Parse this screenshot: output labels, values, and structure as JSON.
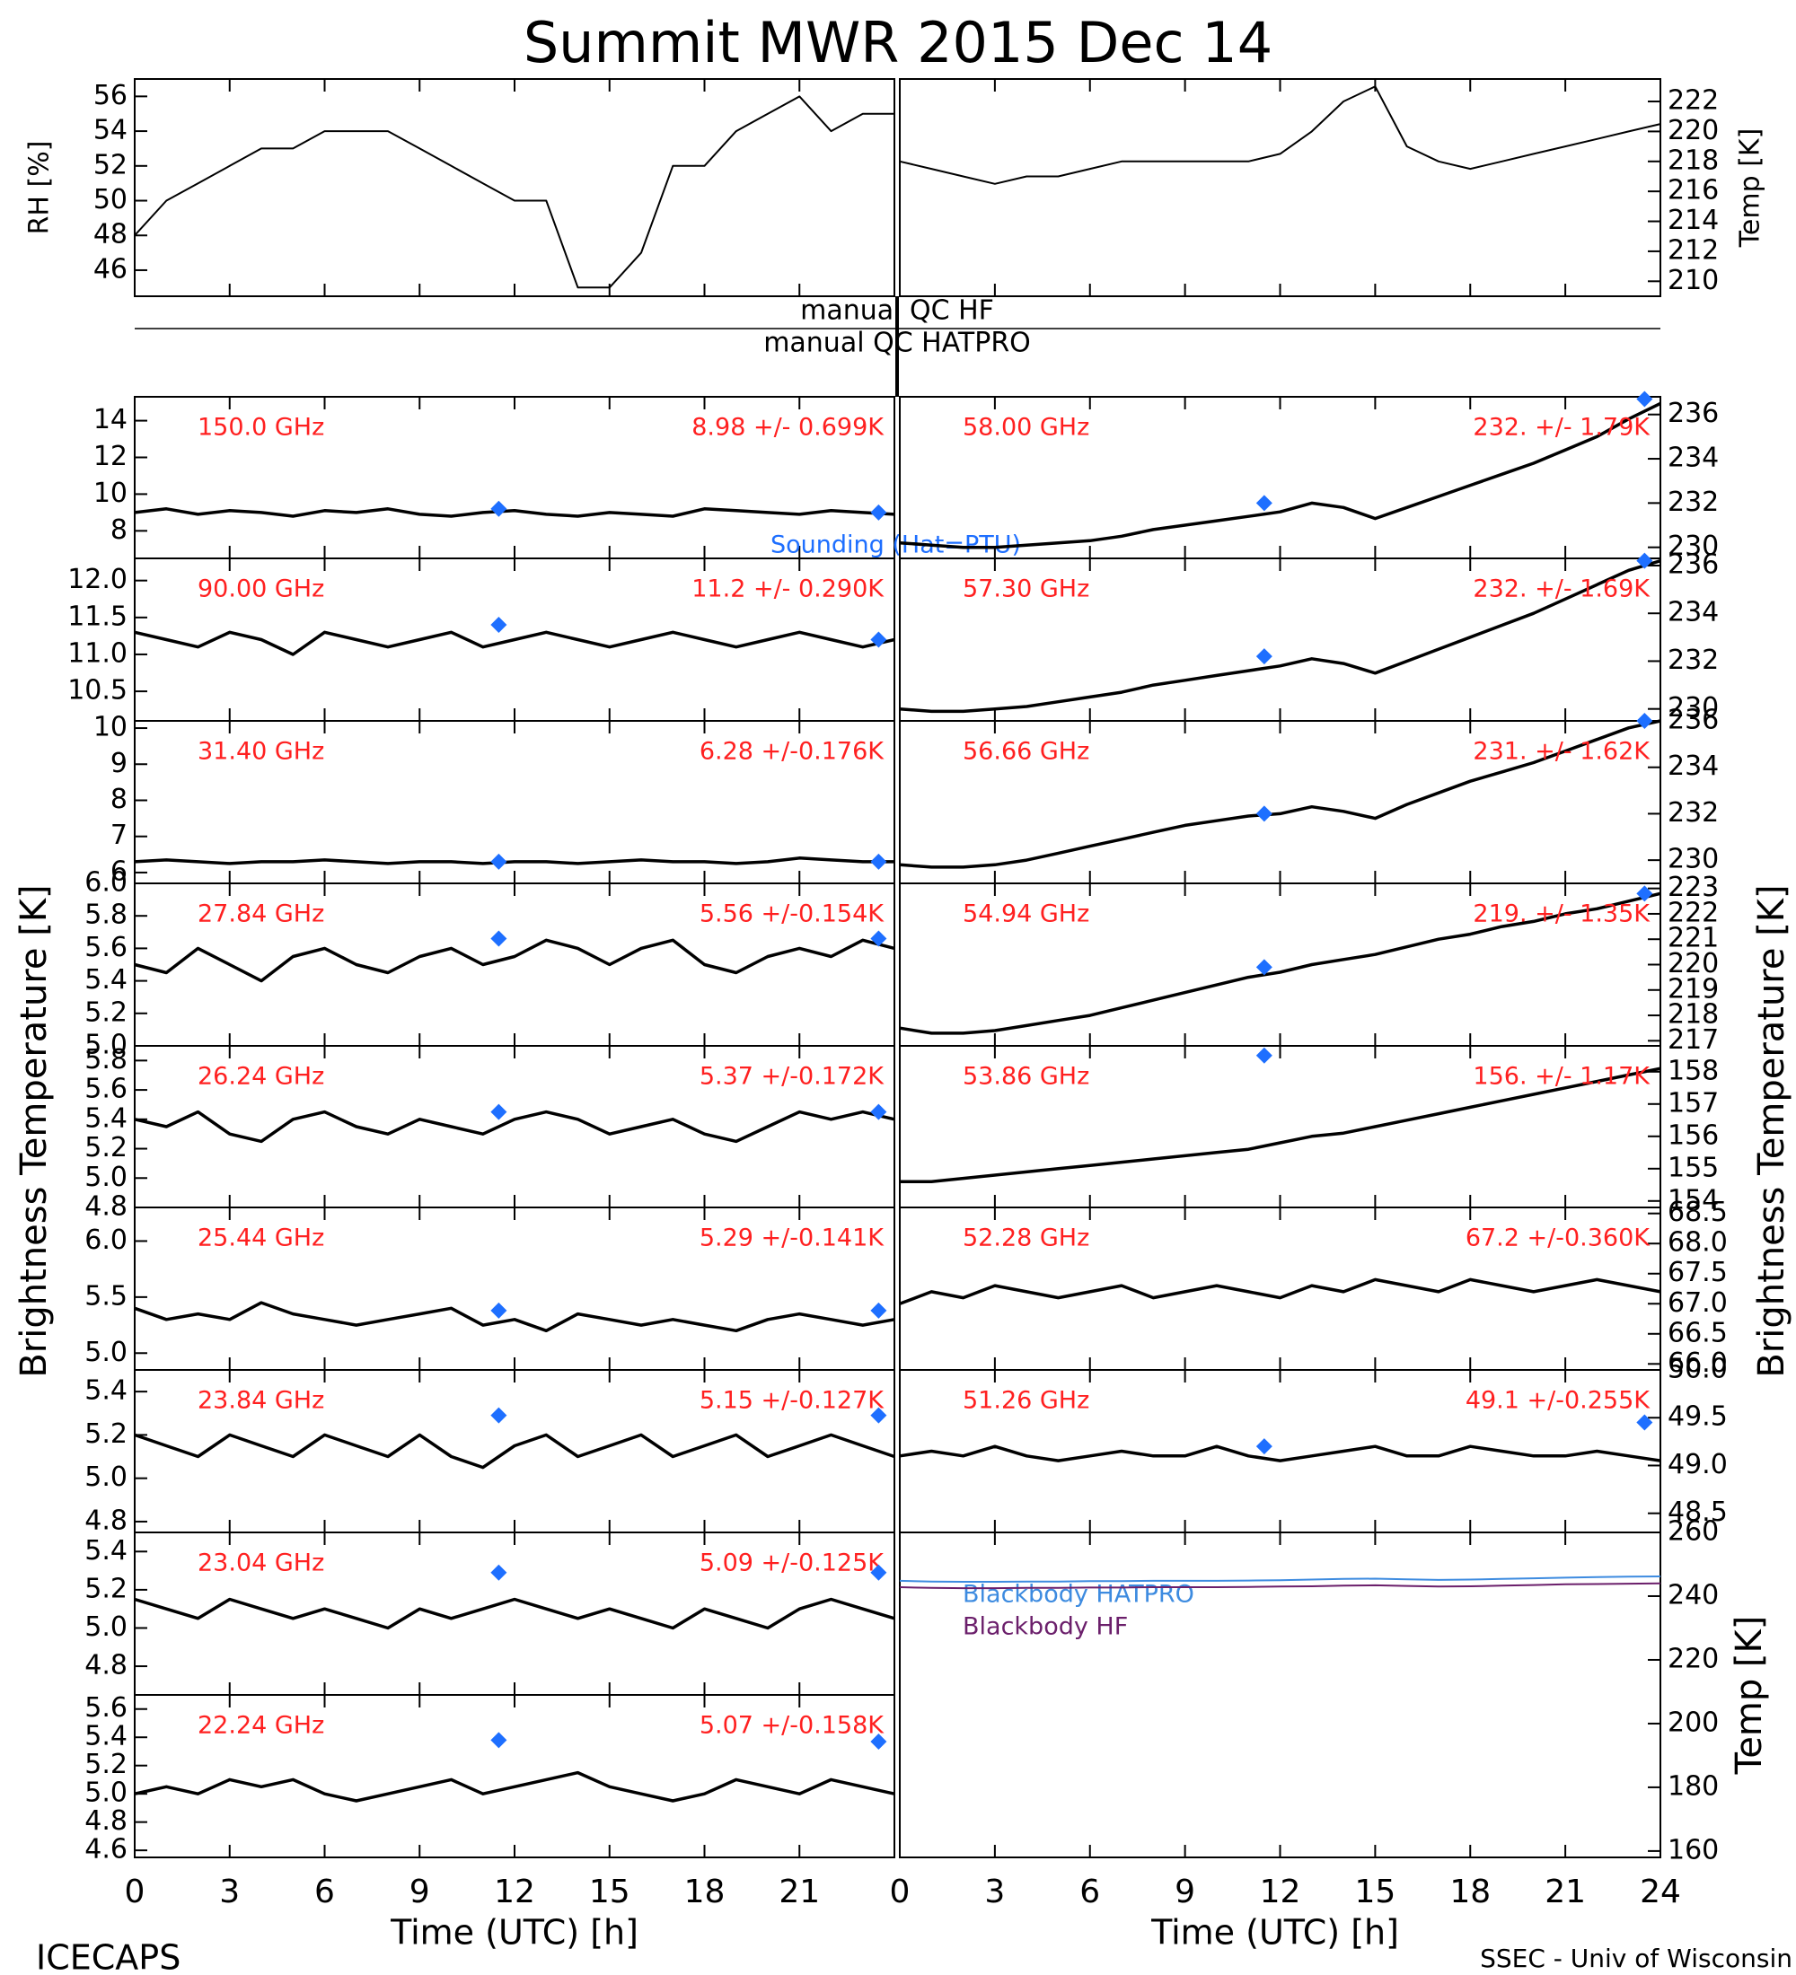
{
  "title": "Summit MWR 2015 Dec 14",
  "footer_left": "ICECAPS",
  "footer_right": "SSEC - Univ of Wisconsin",
  "y_label_left": "Brightness Temperature [K]",
  "y_label_right": "Brightness Temperature [K]",
  "qc_hf": "manual QC HF",
  "qc_hatpro": "manual QC HATPRO",
  "sounding_label": "Sounding (Hat=PTU)",
  "sonde_color": "#1e6fff",
  "x": [
    0,
    1,
    2,
    3,
    4,
    5,
    6,
    7,
    8,
    9,
    10,
    11,
    12,
    13,
    14,
    15,
    16,
    17,
    18,
    19,
    20,
    21,
    22,
    23,
    24
  ],
  "time_axis": {
    "xlim": [
      0,
      24
    ],
    "xlabel": "Time (UTC) [h]",
    "xticks_left": [
      0,
      3,
      6,
      9,
      12,
      15,
      18,
      21
    ],
    "xticks_right": [
      0,
      3,
      6,
      9,
      12,
      15,
      18,
      21,
      24
    ]
  },
  "chart_data": [
    {
      "type": "line",
      "ylabel": "RH [%]",
      "ylim": [
        44.5,
        57
      ],
      "yticks": [
        46,
        48,
        50,
        52,
        54,
        56
      ],
      "color": "#000000",
      "values": [
        48,
        50,
        51,
        52,
        53,
        53,
        54,
        54,
        54,
        53,
        52,
        51,
        50,
        50,
        45,
        45,
        47,
        52,
        52,
        54,
        55,
        56,
        54,
        55,
        55
      ]
    },
    {
      "type": "line",
      "ylabel": "Temp [K]",
      "ylim": [
        209,
        223.5
      ],
      "yticks": [
        210,
        212,
        214,
        216,
        218,
        220,
        222
      ],
      "color": "#000000",
      "values": [
        218,
        217.5,
        217,
        216.5,
        217,
        217,
        217.5,
        218,
        218,
        218,
        218,
        218,
        218.5,
        220,
        222,
        223,
        219,
        218,
        217.5,
        218,
        218.5,
        219,
        219.5,
        220,
        220.5
      ]
    },
    {
      "type": "line",
      "label": "150.0 GHz",
      "stats": "8.98 +/- 0.699K",
      "ylim": [
        6.5,
        15.3
      ],
      "yticks": [
        8,
        10,
        12,
        14
      ],
      "color": "#000000",
      "values": [
        9.0,
        9.2,
        8.9,
        9.1,
        9.0,
        8.8,
        9.1,
        9.0,
        9.2,
        8.9,
        8.8,
        9.0,
        9.1,
        8.9,
        8.8,
        9.0,
        8.9,
        8.8,
        9.2,
        9.1,
        9.0,
        8.9,
        9.1,
        9.0,
        8.9
      ],
      "sonde": {
        "x": [
          11.5,
          23.5
        ],
        "values": [
          9.2,
          9.0
        ]
      }
    },
    {
      "type": "line",
      "label": "90.00 GHz",
      "stats": "11.2 +/- 0.290K",
      "ylim": [
        10.1,
        12.3
      ],
      "yticks": [
        10.5,
        {
          "value": 11,
          "label": "11.0"
        },
        11.5,
        {
          "value": 12,
          "label": "12.0"
        }
      ],
      "color": "#000000",
      "values": [
        11.3,
        11.2,
        11.1,
        11.3,
        11.2,
        11.0,
        11.3,
        11.2,
        11.1,
        11.2,
        11.3,
        11.1,
        11.2,
        11.3,
        11.2,
        11.1,
        11.2,
        11.3,
        11.2,
        11.1,
        11.2,
        11.3,
        11.2,
        11.1,
        11.2
      ],
      "sonde": {
        "x": [
          11.5,
          23.5
        ],
        "values": [
          11.4,
          11.2
        ]
      }
    },
    {
      "type": "line",
      "label": "31.40 GHz",
      "stats": "6.28 +/-0.176K",
      "ylim": [
        5.7,
        10.2
      ],
      "yticks": [
        6,
        7,
        8,
        9,
        10
      ],
      "color": "#000000",
      "values": [
        6.3,
        6.35,
        6.3,
        6.25,
        6.3,
        6.3,
        6.35,
        6.3,
        6.25,
        6.3,
        6.3,
        6.25,
        6.3,
        6.3,
        6.25,
        6.3,
        6.35,
        6.3,
        6.3,
        6.25,
        6.3,
        6.4,
        6.35,
        6.3,
        6.3
      ],
      "sonde": {
        "x": [
          11.5,
          23.5
        ],
        "values": [
          6.3,
          6.3
        ]
      }
    },
    {
      "type": "line",
      "label": "27.84 GHz",
      "stats": "5.56 +/-0.154K",
      "ylim": [
        5.0,
        6.0
      ],
      "yticks": [
        {
          "value": 5,
          "label": "5.0"
        },
        5.2,
        5.4,
        5.6,
        5.8,
        {
          "value": 6,
          "label": "6.0"
        }
      ],
      "color": "#000000",
      "values": [
        5.5,
        5.45,
        5.6,
        5.5,
        5.4,
        5.55,
        5.6,
        5.5,
        5.45,
        5.55,
        5.6,
        5.5,
        5.55,
        5.65,
        5.6,
        5.5,
        5.6,
        5.65,
        5.5,
        5.45,
        5.55,
        5.6,
        5.55,
        5.65,
        5.6
      ],
      "sonde": {
        "x": [
          11.5,
          23.5
        ],
        "values": [
          5.66,
          5.66
        ]
      }
    },
    {
      "type": "line",
      "label": "26.24 GHz",
      "stats": "5.37 +/-0.172K",
      "ylim": [
        4.8,
        5.9
      ],
      "yticks": [
        4.8,
        {
          "value": 5,
          "label": "5.0"
        },
        5.2,
        5.4,
        5.6,
        5.8
      ],
      "color": "#000000",
      "values": [
        5.4,
        5.35,
        5.45,
        5.3,
        5.25,
        5.4,
        5.45,
        5.35,
        5.3,
        5.4,
        5.35,
        5.3,
        5.4,
        5.45,
        5.4,
        5.3,
        5.35,
        5.4,
        5.3,
        5.25,
        5.35,
        5.45,
        5.4,
        5.45,
        5.4
      ],
      "sonde": {
        "x": [
          11.5,
          23.5
        ],
        "values": [
          5.45,
          5.45
        ]
      }
    },
    {
      "type": "line",
      "label": "25.44 GHz",
      "stats": "5.29 +/-0.141K",
      "ylim": [
        4.85,
        6.3
      ],
      "yticks": [
        {
          "value": 5,
          "label": "5.0"
        },
        5.5,
        {
          "value": 6,
          "label": "6.0"
        }
      ],
      "color": "#000000",
      "values": [
        5.4,
        5.3,
        5.35,
        5.3,
        5.45,
        5.35,
        5.3,
        5.25,
        5.3,
        5.35,
        5.4,
        5.25,
        5.3,
        5.2,
        5.35,
        5.3,
        5.25,
        5.3,
        5.25,
        5.2,
        5.3,
        5.35,
        5.3,
        5.25,
        5.3
      ],
      "sonde": {
        "x": [
          11.5,
          23.5
        ],
        "values": [
          5.38,
          5.38
        ]
      }
    },
    {
      "type": "line",
      "label": "23.84 GHz",
      "stats": "5.15 +/-0.127K",
      "ylim": [
        4.75,
        5.5
      ],
      "yticks": [
        4.8,
        {
          "value": 5,
          "label": "5.0"
        },
        5.2,
        5.4
      ],
      "color": "#000000",
      "values": [
        5.2,
        5.15,
        5.1,
        5.2,
        5.15,
        5.1,
        5.2,
        5.15,
        5.1,
        5.2,
        5.1,
        5.05,
        5.15,
        5.2,
        5.1,
        5.15,
        5.2,
        5.1,
        5.15,
        5.2,
        5.1,
        5.15,
        5.2,
        5.15,
        5.1
      ],
      "sonde": {
        "x": [
          11.5,
          23.5
        ],
        "values": [
          5.29,
          5.29
        ]
      }
    },
    {
      "type": "line",
      "label": "23.04 GHz",
      "stats": "5.09 +/-0.125K",
      "ylim": [
        4.65,
        5.5
      ],
      "yticks": [
        4.8,
        {
          "value": 5,
          "label": "5.0"
        },
        5.2,
        5.4
      ],
      "color": "#000000",
      "values": [
        5.15,
        5.1,
        5.05,
        5.15,
        5.1,
        5.05,
        5.1,
        5.05,
        5.0,
        5.1,
        5.05,
        5.1,
        5.15,
        5.1,
        5.05,
        5.1,
        5.05,
        5.0,
        5.1,
        5.05,
        5.0,
        5.1,
        5.15,
        5.1,
        5.05
      ],
      "sonde": {
        "x": [
          11.5,
          23.5
        ],
        "values": [
          5.29,
          5.29
        ]
      }
    },
    {
      "type": "line",
      "label": "22.24 GHz",
      "stats": "5.07 +/-0.158K",
      "ylim": [
        4.55,
        5.7
      ],
      "yticks": [
        4.6,
        4.8,
        {
          "value": 5,
          "label": "5.0"
        },
        5.2,
        5.4,
        5.6
      ],
      "color": "#000000",
      "values": [
        5.0,
        5.05,
        5.0,
        5.1,
        5.05,
        5.1,
        5.0,
        4.95,
        5.0,
        5.05,
        5.1,
        5.0,
        5.05,
        5.1,
        5.15,
        5.05,
        5.0,
        4.95,
        5.0,
        5.1,
        5.05,
        5.0,
        5.1,
        5.05,
        5.0
      ],
      "sonde": {
        "x": [
          11.5,
          23.5
        ],
        "values": [
          5.38,
          5.37
        ]
      }
    },
    {
      "type": "line",
      "label": "58.00 GHz",
      "stats": "232. +/- 1.79K",
      "ylim": [
        229.5,
        236.8
      ],
      "yticks": [
        230,
        232,
        234,
        236
      ],
      "color": "#000000",
      "values": [
        230.2,
        230.1,
        230.0,
        230.0,
        230.1,
        230.2,
        230.3,
        230.5,
        230.8,
        231.0,
        231.2,
        231.4,
        231.6,
        232.0,
        231.8,
        231.3,
        231.8,
        232.3,
        232.8,
        233.3,
        233.8,
        234.4,
        235.0,
        235.8,
        236.5
      ],
      "sonde": {
        "x": [
          11.5,
          23.5
        ],
        "values": [
          232.0,
          236.7
        ]
      }
    },
    {
      "type": "line",
      "label": "57.30 GHz",
      "stats": "232. +/- 1.69K",
      "ylim": [
        229.5,
        236.3
      ],
      "yticks": [
        230,
        232,
        234,
        236
      ],
      "color": "#000000",
      "values": [
        230.0,
        229.9,
        229.9,
        230.0,
        230.1,
        230.3,
        230.5,
        230.7,
        231.0,
        231.2,
        231.4,
        231.6,
        231.8,
        232.1,
        231.9,
        231.5,
        232.0,
        232.5,
        233.0,
        233.5,
        234.0,
        234.6,
        235.2,
        235.8,
        236.2
      ],
      "sonde": {
        "x": [
          11.5,
          23.5
        ],
        "values": [
          232.2,
          236.2
        ]
      }
    },
    {
      "type": "line",
      "label": "56.66 GHz",
      "stats": "231. +/- 1.62K",
      "ylim": [
        229,
        236
      ],
      "yticks": [
        230,
        232,
        234,
        236
      ],
      "color": "#000000",
      "values": [
        229.8,
        229.7,
        229.7,
        229.8,
        230.0,
        230.3,
        230.6,
        230.9,
        231.2,
        231.5,
        231.7,
        231.9,
        232.0,
        232.3,
        232.1,
        231.8,
        232.4,
        232.9,
        233.4,
        233.8,
        234.2,
        234.7,
        235.2,
        235.7,
        236.0
      ],
      "sonde": {
        "x": [
          11.5,
          23.5
        ],
        "values": [
          232.0,
          236.0
        ]
      }
    },
    {
      "type": "line",
      "label": "54.94 GHz",
      "stats": "219. +/- 1.35K",
      "ylim": [
        216.8,
        223.2
      ],
      "yticks": [
        217,
        218,
        219,
        220,
        221,
        222,
        223
      ],
      "color": "#000000",
      "values": [
        217.5,
        217.3,
        217.3,
        217.4,
        217.6,
        217.8,
        218.0,
        218.3,
        218.6,
        218.9,
        219.2,
        219.5,
        219.7,
        220.0,
        220.2,
        220.4,
        220.7,
        221.0,
        221.2,
        221.5,
        221.7,
        222.0,
        222.2,
        222.5,
        222.8
      ],
      "sonde": {
        "x": [
          11.5,
          23.5
        ],
        "values": [
          219.9,
          222.8
        ]
      }
    },
    {
      "type": "line",
      "label": "53.86 GHz",
      "stats": "156. +/- 1.17K",
      "ylim": [
        153.8,
        158.8
      ],
      "yticks": [
        154,
        155,
        156,
        157,
        158
      ],
      "color": "#000000",
      "values": [
        154.6,
        154.6,
        154.7,
        154.8,
        154.9,
        155.0,
        155.1,
        155.2,
        155.3,
        155.4,
        155.5,
        155.6,
        155.8,
        156.0,
        156.1,
        156.3,
        156.5,
        156.7,
        156.9,
        157.1,
        157.3,
        157.5,
        157.7,
        157.9,
        158.1
      ],
      "sonde": {
        "x": [
          11.5,
          23.5
        ],
        "values": [
          158.5,
          null
        ]
      }
    },
    {
      "type": "line",
      "label": "52.28 GHz",
      "stats": "67.2 +/-0.360K",
      "ylim": [
        65.9,
        68.6
      ],
      "yticks": [
        {
          "value": 66,
          "label": "66.0"
        },
        66.5,
        {
          "value": 67,
          "label": "67.0"
        },
        67.5,
        {
          "value": 68,
          "label": "68.0"
        },
        68.5
      ],
      "color": "#000000",
      "values": [
        67.0,
        67.2,
        67.1,
        67.3,
        67.2,
        67.1,
        67.2,
        67.3,
        67.1,
        67.2,
        67.3,
        67.2,
        67.1,
        67.3,
        67.2,
        67.4,
        67.3,
        67.2,
        67.4,
        67.3,
        67.2,
        67.3,
        67.4,
        67.3,
        67.2
      ]
    },
    {
      "type": "line",
      "label": "51.26 GHz",
      "stats": "49.1 +/-0.255K",
      "ylim": [
        48.3,
        50.0
      ],
      "yticks": [
        48.5,
        {
          "value": 49,
          "label": "49.0"
        },
        49.5,
        {
          "value": 50,
          "label": "50.0"
        }
      ],
      "color": "#000000",
      "values": [
        49.1,
        49.15,
        49.1,
        49.2,
        49.1,
        49.05,
        49.1,
        49.15,
        49.1,
        49.1,
        49.2,
        49.1,
        49.05,
        49.1,
        49.15,
        49.2,
        49.1,
        49.1,
        49.2,
        49.15,
        49.1,
        49.1,
        49.15,
        49.1,
        49.05
      ],
      "sonde": {
        "x": [
          11.5,
          23.5
        ],
        "values": [
          49.2,
          49.45
        ]
      }
    },
    {
      "type": "line",
      "ylabel": "Temp [K]",
      "ylim": [
        158,
        260
      ],
      "yticks": [
        160,
        180,
        200,
        220,
        240,
        260
      ],
      "series": [
        {
          "name": "Blackbody HATPRO",
          "color": "#3d8be0",
          "values": [
            244.8,
            244.6,
            244.5,
            244.5,
            244.6,
            244.6,
            244.7,
            244.7,
            244.8,
            244.8,
            244.8,
            244.9,
            245.0,
            245.2,
            245.4,
            245.5,
            245.3,
            245.1,
            245.2,
            245.4,
            245.6,
            245.8,
            246.0,
            246.1,
            246.2
          ]
        },
        {
          "name": "Blackbody HF",
          "color": "#6b1f6b",
          "values": [
            242.8,
            242.6,
            242.5,
            242.5,
            242.6,
            242.6,
            242.7,
            242.7,
            242.8,
            242.8,
            242.8,
            242.9,
            243.0,
            243.1,
            243.3,
            243.4,
            243.2,
            243.0,
            243.1,
            243.3,
            243.5,
            243.7,
            243.8,
            243.9,
            244.0
          ]
        }
      ]
    }
  ]
}
